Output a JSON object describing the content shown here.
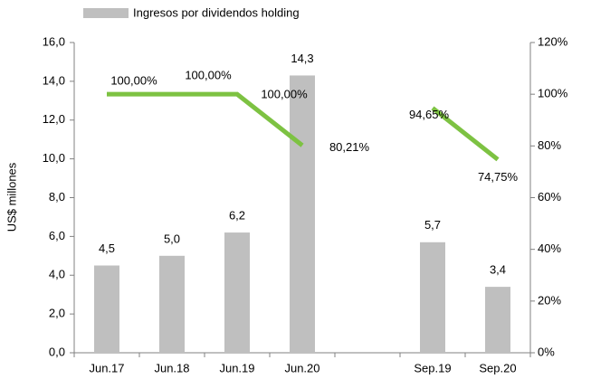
{
  "chart_data": {
    "type": "bar-line",
    "y_label": "US$ millones",
    "categories": [
      "Jun.17",
      "Jun.18",
      "Jun.19",
      "Jun.20",
      null,
      "Sep.19",
      "Sep.20"
    ],
    "series": [
      {
        "name": "Ingresos por dividendos holding",
        "type": "bar",
        "color": "#bfbfbf",
        "values": [
          4.5,
          5.0,
          6.2,
          14.3,
          null,
          5.7,
          3.4
        ],
        "value_labels": [
          "4,5",
          "5,0",
          "6,2",
          "14,3",
          null,
          "5,7",
          "3,4"
        ]
      },
      {
        "type": "line",
        "axis": "y2",
        "color": "#7dc242",
        "values": [
          100,
          100,
          100,
          80.21,
          null,
          94.65,
          74.75
        ],
        "value_labels": [
          "100,00%",
          "100,00%",
          "100,00%",
          "80,21%",
          null,
          "94,65%",
          "74,75%"
        ]
      }
    ],
    "ylim": [
      0,
      16
    ],
    "yticks": [
      {
        "value": 0,
        "label": "0,0"
      },
      {
        "value": 2,
        "label": "2,0"
      },
      {
        "value": 4,
        "label": "4,0"
      },
      {
        "value": 6,
        "label": "6,0"
      },
      {
        "value": 8,
        "label": "8,0"
      },
      {
        "value": 10,
        "label": "10,0"
      },
      {
        "value": 12,
        "label": "12,0"
      },
      {
        "value": 14,
        "label": "14,0"
      },
      {
        "value": 16,
        "label": "16,0"
      }
    ],
    "y2lim": [
      0,
      120
    ],
    "y2ticks": [
      {
        "value": 0,
        "label": "0%"
      },
      {
        "value": 20,
        "label": "20%"
      },
      {
        "value": 40,
        "label": "40%"
      },
      {
        "value": 60,
        "label": "60%"
      },
      {
        "value": 80,
        "label": "80%"
      },
      {
        "value": 100,
        "label": "100%"
      },
      {
        "value": 120,
        "label": "120%"
      }
    ],
    "grid": false,
    "legend": "top"
  }
}
